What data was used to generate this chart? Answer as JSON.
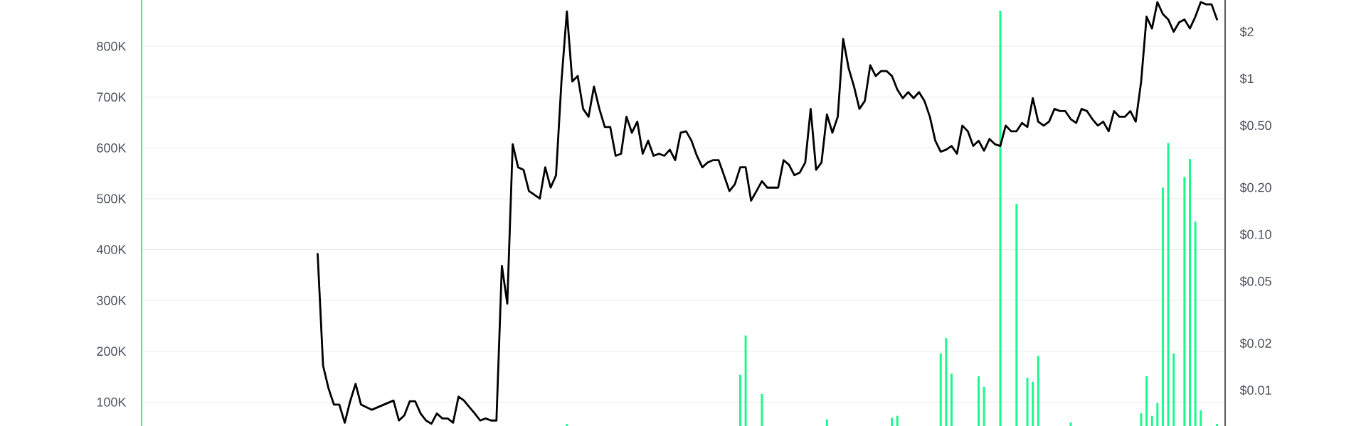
{
  "chart_data": {
    "type": "bar",
    "categories": [
      null,
      null,
      null,
      null,
      null,
      null,
      null,
      null,
      null,
      null,
      null,
      null,
      null,
      null,
      null,
      null,
      null,
      null,
      null,
      null,
      null,
      null,
      null,
      null,
      null,
      null,
      null,
      null,
      null,
      null,
      null,
      null,
      null,
      null,
      null,
      null,
      null,
      null,
      null,
      null,
      null,
      null,
      null,
      null,
      null,
      null,
      null,
      null,
      null,
      null,
      null,
      null,
      null,
      null,
      null,
      null,
      null,
      null,
      null,
      null,
      null,
      null,
      null,
      null,
      null,
      null,
      null,
      null,
      null,
      null,
      null,
      null,
      null,
      null,
      null,
      null,
      null,
      null,
      null,
      null,
      null,
      null,
      null,
      null,
      null,
      null,
      null,
      null,
      null,
      null,
      null,
      null,
      null,
      null,
      null,
      null,
      null,
      null,
      null,
      null,
      null,
      null,
      null,
      null,
      null,
      null,
      null,
      null,
      null,
      null,
      null,
      null,
      null,
      null,
      null,
      null,
      null,
      null,
      null,
      null,
      null,
      null,
      null,
      null,
      null,
      null,
      null,
      null,
      null,
      null,
      null,
      null,
      null,
      null,
      null,
      null,
      null,
      null,
      null,
      null,
      null,
      null,
      null,
      null,
      null,
      null,
      null,
      null,
      null,
      null,
      null,
      null,
      null,
      null,
      null,
      null,
      null,
      null,
      null,
      null,
      null,
      null,
      null,
      null,
      null,
      null,
      null,
      null,
      null,
      null,
      null,
      null,
      null,
      null,
      null,
      null,
      null,
      null,
      null,
      null,
      null,
      null,
      null,
      null,
      null,
      null,
      null,
      null,
      null,
      null,
      null,
      null,
      null,
      null,
      null,
      null,
      null,
      null,
      null,
      null
    ],
    "series": [
      {
        "color": "#1af98e",
        "values": [
          null,
          null,
          null,
          null,
          null,
          null,
          null,
          null,
          null,
          null,
          null,
          null,
          null,
          null,
          null,
          null,
          null,
          null,
          null,
          null,
          null,
          null,
          null,
          null,
          null,
          null,
          null,
          null,
          null,
          null,
          null,
          null,
          null,
          null,
          null,
          null,
          null,
          null,
          null,
          null,
          null,
          null,
          null,
          null,
          null,
          null,
          null,
          null,
          null,
          null,
          null,
          null,
          null,
          null,
          null,
          null,
          null,
          null,
          null,
          null,
          null,
          null,
          null,
          null,
          null,
          null,
          null,
          null,
          null,
          null,
          null,
          null,
          null,
          null,
          null,
          null,
          null,
          null,
          57000,
          null,
          null,
          null,
          null,
          null,
          null,
          null,
          null,
          null,
          null,
          null,
          null,
          null,
          null,
          null,
          null,
          null,
          null,
          null,
          null,
          null,
          null,
          null,
          null,
          null,
          null,
          null,
          null,
          null,
          null,
          null,
          154000,
          231000,
          null,
          null,
          116000,
          null,
          null,
          null,
          null,
          null,
          null,
          null,
          null,
          null,
          null,
          null,
          66000,
          null,
          null,
          null,
          null,
          null,
          null,
          null,
          null,
          null,
          null,
          null,
          69000,
          73000,
          null,
          null,
          null,
          null,
          null,
          null,
          null,
          196000,
          226000,
          156000,
          null,
          null,
          null,
          null,
          151000,
          130000,
          null,
          null,
          870000,
          null,
          null,
          490000,
          null,
          148000,
          140000,
          191000,
          null,
          null,
          null,
          null,
          null,
          60000,
          null,
          null,
          null,
          null,
          null,
          null,
          null,
          null,
          null,
          null,
          null,
          null,
          78000,
          151000,
          73000,
          98000,
          522000,
          610000,
          196000,
          null,
          543000,
          578000,
          455000,
          84000,
          null,
          null,
          57000,
          null
        ]
      },
      {
        "type": "line",
        "axis": "y2",
        "color": "#000000",
        "values": [
          null,
          null,
          null,
          null,
          null,
          null,
          null,
          null,
          null,
          null,
          null,
          null,
          null,
          null,
          null,
          null,
          null,
          null,
          null,
          null,
          null,
          null,
          null,
          null,
          null,
          null,
          null,
          null,
          null,
          null,
          null,
          null,
          0.075,
          0.0144,
          0.0103,
          0.0081,
          0.0081,
          0.0062,
          0.0085,
          0.011,
          0.0081,
          0.0078,
          0.0075,
          null,
          null,
          null,
          0.0086,
          0.0064,
          0.0069,
          0.0085,
          0.0085,
          0.0071,
          0.0064,
          0.0061,
          0.0071,
          0.0066,
          0.0066,
          0.0062,
          0.0091,
          0.0086,
          0.0078,
          0.0071,
          0.0064,
          0.0066,
          0.0064,
          0.0064,
          0.063,
          0.036,
          0.38,
          0.27,
          0.26,
          0.19,
          0.18,
          0.17,
          0.27,
          0.2,
          0.24,
          0.96,
          2.7,
          0.96,
          1.04,
          0.64,
          0.57,
          0.89,
          0.64,
          0.49,
          0.49,
          0.32,
          0.33,
          0.57,
          0.45,
          0.53,
          0.33,
          0.4,
          0.32,
          0.33,
          0.32,
          0.35,
          0.3,
          0.45,
          0.46,
          0.4,
          0.32,
          0.27,
          0.29,
          0.3,
          0.3,
          0.24,
          0.19,
          0.21,
          0.27,
          0.27,
          0.165,
          0.19,
          0.22,
          0.2,
          0.2,
          0.2,
          0.3,
          0.28,
          0.24,
          0.25,
          0.29,
          0.64,
          0.26,
          0.29,
          0.59,
          0.45,
          0.57,
          1.8,
          1.17,
          0.89,
          0.64,
          0.72,
          1.22,
          1.04,
          1.12,
          1.12,
          1.04,
          0.85,
          0.75,
          0.82,
          0.75,
          0.82,
          0.72,
          0.57,
          0.4,
          0.34,
          0.35,
          0.37,
          0.33,
          0.5,
          0.46,
          0.37,
          0.4,
          0.345,
          0.41,
          0.38,
          0.37,
          0.5,
          0.46,
          0.46,
          0.52,
          0.49,
          0.75,
          0.53,
          0.5,
          0.53,
          0.64,
          0.62,
          0.62,
          0.55,
          0.52,
          0.64,
          0.62,
          0.55,
          0.5,
          0.53,
          0.46,
          0.62,
          0.57,
          0.57,
          0.62,
          0.53,
          0.96,
          2.5,
          2.1,
          3.1,
          2.6,
          2.4,
          2.0,
          2.3,
          2.4,
          2.1,
          2.5,
          3.1,
          3.0,
          3.0,
          2.4,
          null
        ]
      }
    ],
    "ylim": [
      53000,
      891000
    ],
    "yticks": [
      {
        "value": 100000,
        "label": "100K"
      },
      {
        "value": 200000,
        "label": "200K"
      },
      {
        "value": 300000,
        "label": "300K"
      },
      {
        "value": 400000,
        "label": "400K"
      },
      {
        "value": 500000,
        "label": "500K"
      },
      {
        "value": 600000,
        "label": "600K"
      },
      {
        "value": 700000,
        "label": "700K"
      },
      {
        "value": 800000,
        "label": "800K"
      }
    ],
    "y2lim": [
      0.0059,
      3.2
    ],
    "y2ticks": [
      {
        "value": 0.01,
        "label": "$0.01"
      },
      {
        "value": 0.02,
        "label": "$0.02"
      },
      {
        "value": 0.05,
        "label": "$0.05"
      },
      {
        "value": 0.1,
        "label": "$0.10"
      },
      {
        "value": 0.2,
        "label": "$0.20"
      },
      {
        "value": 0.5,
        "label": "$0.50"
      },
      {
        "value": 1,
        "label": "$1"
      },
      {
        "value": 2,
        "label": "$2"
      }
    ],
    "log": "y2",
    "grid": "y"
  }
}
